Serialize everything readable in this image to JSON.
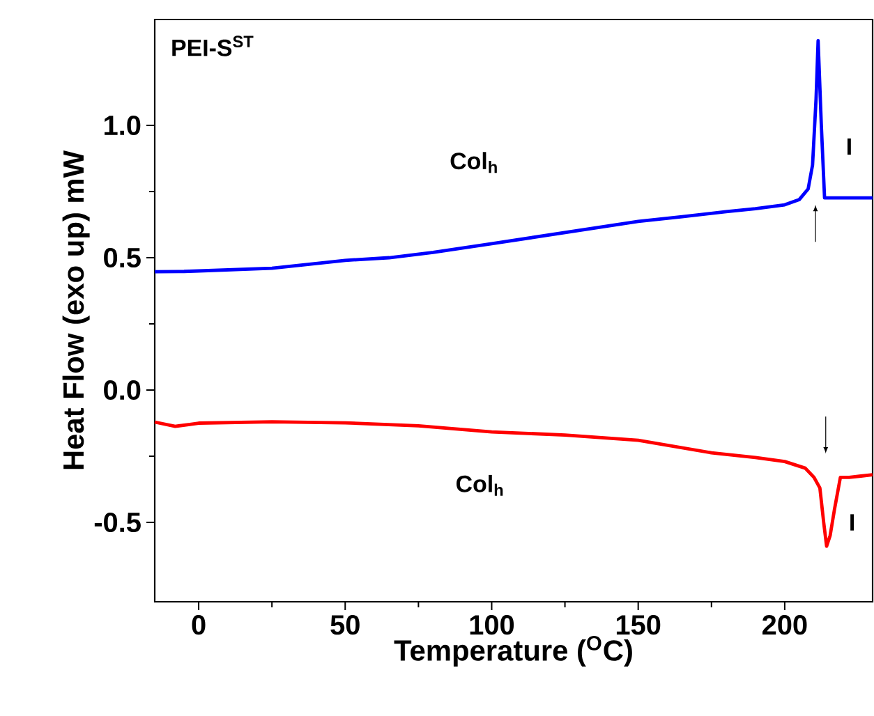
{
  "chart_data": {
    "type": "line",
    "xlabel": "Temperature ($^{O}$C)",
    "ylabel": "Heat Flow (exo up) mW",
    "annotations": [
      "PEI-S$^{ST}$",
      "Col$_{h}$",
      "I",
      "Col$_{h}$",
      "I"
    ],
    "series": [
      {
        "color": "#0000ff",
        "x": [
          -15,
          -5,
          0,
          25,
          50,
          65,
          80,
          100,
          125,
          150,
          165,
          180,
          190,
          200,
          205,
          208,
          209.5,
          210.7,
          211.4,
          212.5,
          213.6,
          215,
          220,
          230
        ],
        "values": [
          0.447,
          0.448,
          0.45,
          0.46,
          0.49,
          0.5,
          0.52,
          0.553,
          0.595,
          0.637,
          0.655,
          0.674,
          0.685,
          0.7,
          0.72,
          0.76,
          0.85,
          1.1,
          1.32,
          1.0,
          0.726,
          0.726,
          0.726,
          0.726
        ]
      },
      {
        "color": "#ff0000",
        "x": [
          -15,
          -8,
          -3,
          0,
          25,
          50,
          75,
          100,
          125,
          150,
          175,
          190,
          200,
          207,
          210,
          212,
          213.3,
          214.3,
          215.5,
          217,
          219,
          222,
          226,
          230
        ],
        "values": [
          -0.121,
          -0.137,
          -0.13,
          -0.125,
          -0.12,
          -0.124,
          -0.135,
          -0.158,
          -0.17,
          -0.19,
          -0.237,
          -0.255,
          -0.27,
          -0.295,
          -0.33,
          -0.37,
          -0.5,
          -0.59,
          -0.55,
          -0.45,
          -0.33,
          -0.33,
          -0.325,
          -0.32
        ]
      }
    ],
    "xlim": [
      -15,
      230
    ],
    "ylim": [
      -0.8,
      1.4
    ],
    "xticks": [
      0,
      50,
      100,
      150,
      200
    ],
    "yticks": [
      -0.5,
      {
        "value": 0,
        "label": "0.0"
      },
      0.5,
      {
        "value": 1,
        "label": "1.0"
      }
    ],
    "grid": false,
    "marker": "none",
    "line_style": "solid"
  }
}
